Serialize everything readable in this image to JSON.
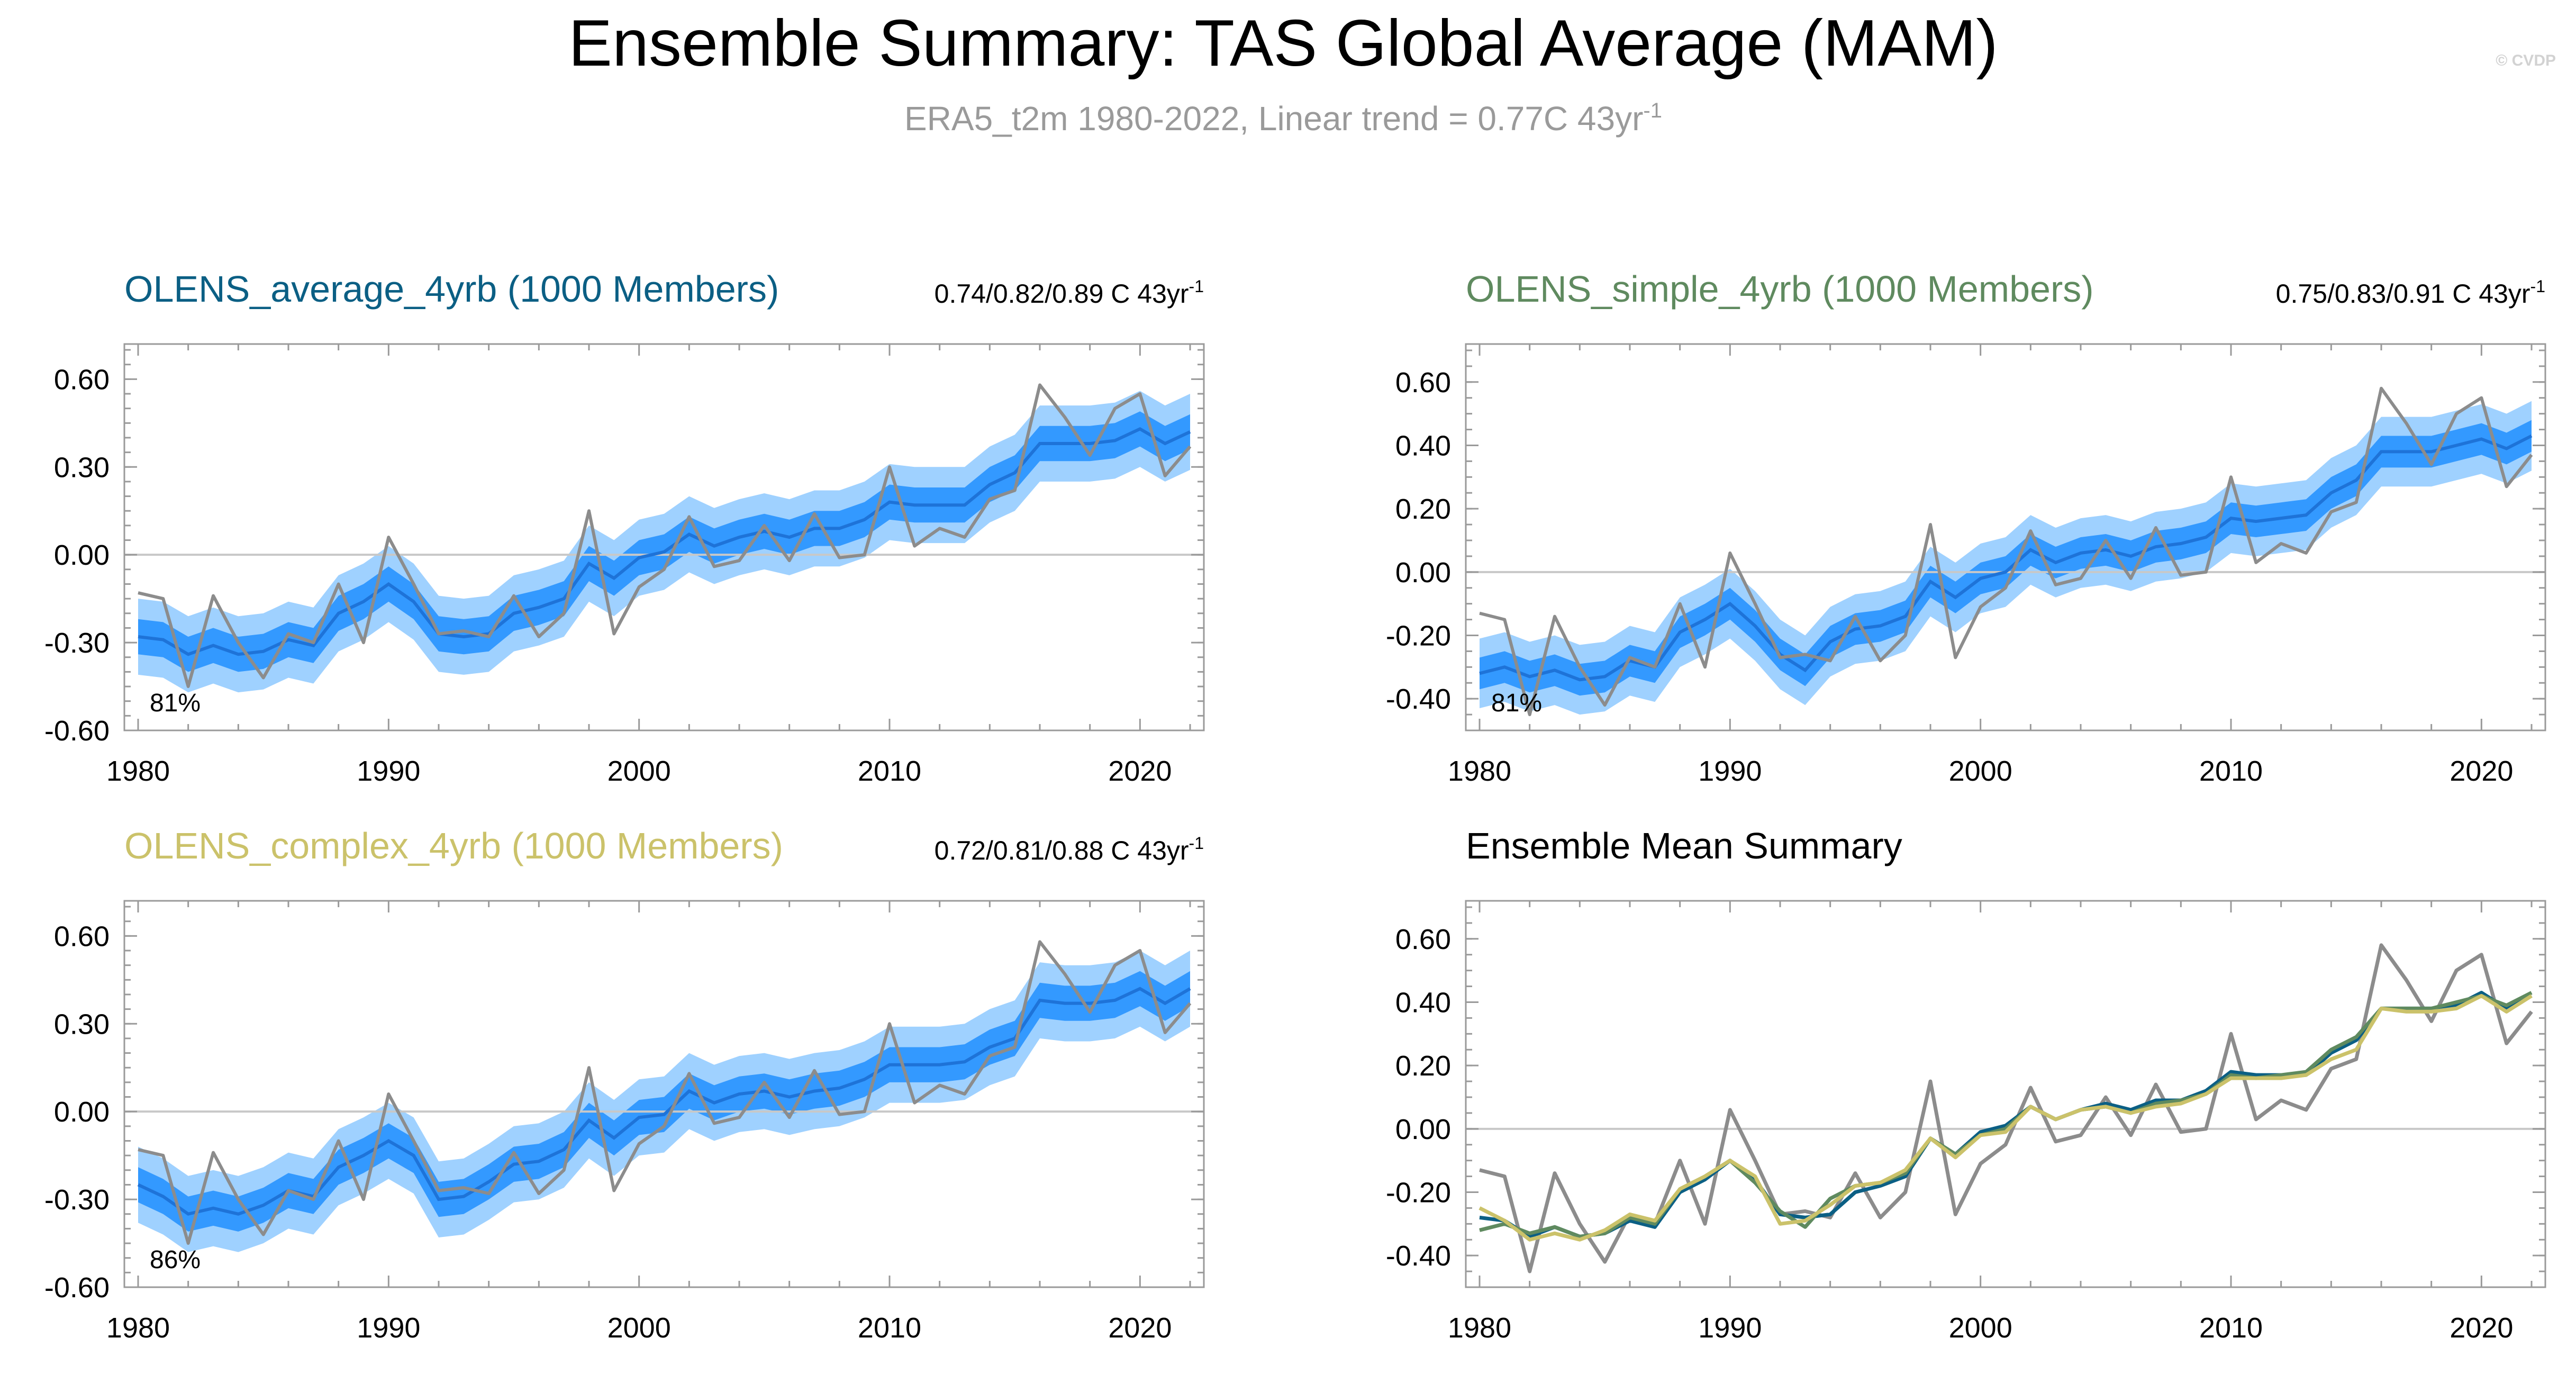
{
  "figure": {
    "title": "Ensemble Summary: TAS Global Average (MAM)",
    "subtitle_main": "ERA5_t2m 1980-2022, Linear trend = 0.77C 43yr",
    "subtitle_sup": "-1",
    "copyright": "© CVDP",
    "colors": {
      "band_outer": "#9fd1ff",
      "band_inner": "#3399ff",
      "ensemble_mean_line": "#1e73d8",
      "observations": "#8c8c8c",
      "zero_line": "#c8c8c8",
      "average_4yrb": "#0b5f84",
      "simple_4yrb": "#5f8a5f",
      "complex_4yrb": "#cbc26a"
    }
  },
  "panels": [
    {
      "title": "OLENS_average_4yrb (1000 Members)",
      "title_color": "#0b5f84",
      "trend_main": "0.74/0.82/0.89 C 43yr",
      "trend_sup": "-1",
      "percent": "81%"
    },
    {
      "title": "OLENS_simple_4yrb (1000 Members)",
      "title_color": "#5f8a5f",
      "trend_main": "0.75/0.83/0.91 C 43yr",
      "trend_sup": "-1",
      "percent": "81%"
    },
    {
      "title": "OLENS_complex_4yrb (1000 Members)",
      "title_color": "#cbc26a",
      "trend_main": "0.72/0.81/0.88 C 43yr",
      "trend_sup": "-1",
      "percent": "86%"
    },
    {
      "title": "Ensemble Mean Summary",
      "title_color": "#000000"
    }
  ],
  "chart_data": [
    {
      "type": "area",
      "panel": "OLENS_average_4yrb (1000 Members)",
      "xlim": [
        1980,
        2022
      ],
      "ylim": [
        -0.6,
        0.72
      ],
      "yticks": [
        -0.6,
        -0.3,
        0.0,
        0.3,
        0.6
      ],
      "ytick_labels": [
        "-0.60",
        "-0.30",
        "0.00",
        "0.30",
        "0.60"
      ],
      "xticks": [
        1980,
        1990,
        2000,
        2010,
        2020
      ],
      "grid": "zero line only",
      "series": [
        {
          "name": "ERA5_t2m",
          "values": [
            -0.13,
            -0.15,
            -0.45,
            -0.14,
            -0.3,
            -0.42,
            -0.27,
            -0.3,
            -0.1,
            -0.3,
            0.06,
            -0.1,
            -0.27,
            -0.26,
            -0.28,
            -0.14,
            -0.28,
            -0.2,
            0.15,
            -0.27,
            -0.11,
            -0.05,
            0.13,
            -0.04,
            -0.02,
            0.1,
            -0.02,
            0.14,
            -0.01,
            0.0,
            0.3,
            0.03,
            0.09,
            0.06,
            0.19,
            0.22,
            0.58,
            0.47,
            0.34,
            0.5,
            0.55,
            0.27,
            0.37
          ]
        }
      ],
      "ensemble_mean": [
        -0.28,
        -0.29,
        -0.34,
        -0.31,
        -0.34,
        -0.33,
        -0.29,
        -0.31,
        -0.2,
        -0.16,
        -0.1,
        -0.16,
        -0.27,
        -0.28,
        -0.27,
        -0.2,
        -0.18,
        -0.15,
        -0.03,
        -0.08,
        -0.01,
        0.01,
        0.07,
        0.03,
        0.06,
        0.08,
        0.06,
        0.09,
        0.09,
        0.12,
        0.18,
        0.17,
        0.17,
        0.17,
        0.24,
        0.28,
        0.38,
        0.38,
        0.38,
        0.39,
        0.43,
        0.38,
        0.42
      ],
      "inner_band_halfwidth": 0.06,
      "outer_band_halfwidth": 0.13
    },
    {
      "type": "area",
      "panel": "OLENS_simple_4yrb (1000 Members)",
      "xlim": [
        1980,
        2022
      ],
      "ylim": [
        -0.5,
        0.72
      ],
      "yticks": [
        -0.4,
        -0.2,
        0.0,
        0.2,
        0.4,
        0.6
      ],
      "ytick_labels": [
        "-0.40",
        "-0.20",
        "0.00",
        "0.20",
        "0.40",
        "0.60"
      ],
      "xticks": [
        1980,
        1990,
        2000,
        2010,
        2020
      ],
      "grid": "zero line only",
      "series": [
        {
          "name": "ERA5_t2m",
          "values": [
            -0.13,
            -0.15,
            -0.45,
            -0.14,
            -0.3,
            -0.42,
            -0.27,
            -0.3,
            -0.1,
            -0.3,
            0.06,
            -0.1,
            -0.27,
            -0.26,
            -0.28,
            -0.14,
            -0.28,
            -0.2,
            0.15,
            -0.27,
            -0.11,
            -0.05,
            0.13,
            -0.04,
            -0.02,
            0.1,
            -0.02,
            0.14,
            -0.01,
            0.0,
            0.3,
            0.03,
            0.09,
            0.06,
            0.19,
            0.22,
            0.58,
            0.47,
            0.34,
            0.5,
            0.55,
            0.27,
            0.37
          ]
        }
      ],
      "ensemble_mean": [
        -0.32,
        -0.3,
        -0.33,
        -0.31,
        -0.34,
        -0.33,
        -0.28,
        -0.3,
        -0.19,
        -0.15,
        -0.1,
        -0.17,
        -0.26,
        -0.31,
        -0.22,
        -0.18,
        -0.17,
        -0.14,
        -0.03,
        -0.08,
        -0.02,
        0.0,
        0.07,
        0.03,
        0.06,
        0.07,
        0.05,
        0.08,
        0.09,
        0.11,
        0.17,
        0.16,
        0.17,
        0.18,
        0.25,
        0.29,
        0.38,
        0.38,
        0.38,
        0.4,
        0.42,
        0.39,
        0.43
      ],
      "inner_band_halfwidth": 0.05,
      "outer_band_halfwidth": 0.11
    },
    {
      "type": "area",
      "panel": "OLENS_complex_4yrb (1000 Members)",
      "xlim": [
        1980,
        2022
      ],
      "ylim": [
        -0.6,
        0.72
      ],
      "yticks": [
        -0.6,
        -0.3,
        0.0,
        0.3,
        0.6
      ],
      "ytick_labels": [
        "-0.60",
        "-0.30",
        "0.00",
        "0.30",
        "0.60"
      ],
      "xticks": [
        1980,
        1990,
        2000,
        2010,
        2020
      ],
      "grid": "zero line only",
      "series": [
        {
          "name": "ERA5_t2m",
          "values": [
            -0.13,
            -0.15,
            -0.45,
            -0.14,
            -0.3,
            -0.42,
            -0.27,
            -0.3,
            -0.1,
            -0.3,
            0.06,
            -0.1,
            -0.27,
            -0.26,
            -0.28,
            -0.14,
            -0.28,
            -0.2,
            0.15,
            -0.27,
            -0.11,
            -0.05,
            0.13,
            -0.04,
            -0.02,
            0.1,
            -0.02,
            0.14,
            -0.01,
            0.0,
            0.3,
            0.03,
            0.09,
            0.06,
            0.19,
            0.22,
            0.58,
            0.47,
            0.34,
            0.5,
            0.55,
            0.27,
            0.37
          ]
        }
      ],
      "ensemble_mean": [
        -0.25,
        -0.29,
        -0.35,
        -0.33,
        -0.35,
        -0.32,
        -0.27,
        -0.29,
        -0.19,
        -0.15,
        -0.1,
        -0.15,
        -0.3,
        -0.29,
        -0.24,
        -0.18,
        -0.17,
        -0.13,
        -0.03,
        -0.09,
        -0.02,
        -0.01,
        0.07,
        0.03,
        0.06,
        0.07,
        0.05,
        0.07,
        0.08,
        0.11,
        0.16,
        0.16,
        0.16,
        0.17,
        0.22,
        0.25,
        0.38,
        0.37,
        0.37,
        0.38,
        0.42,
        0.37,
        0.42
      ],
      "inner_band_halfwidth": 0.06,
      "outer_band_halfwidth": 0.13
    },
    {
      "type": "line",
      "panel": "Ensemble Mean Summary",
      "xlim": [
        1980,
        2022
      ],
      "ylim": [
        -0.5,
        0.72
      ],
      "yticks": [
        -0.4,
        -0.2,
        0.0,
        0.2,
        0.4,
        0.6
      ],
      "ytick_labels": [
        "-0.40",
        "-0.20",
        "0.00",
        "0.20",
        "0.40",
        "0.60"
      ],
      "xticks": [
        1980,
        1990,
        2000,
        2010,
        2020
      ],
      "grid": "zero line only",
      "series": [
        {
          "name": "ERA5_t2m",
          "values": [
            -0.13,
            -0.15,
            -0.45,
            -0.14,
            -0.3,
            -0.42,
            -0.27,
            -0.3,
            -0.1,
            -0.3,
            0.06,
            -0.1,
            -0.27,
            -0.26,
            -0.28,
            -0.14,
            -0.28,
            -0.2,
            0.15,
            -0.27,
            -0.11,
            -0.05,
            0.13,
            -0.04,
            -0.02,
            0.1,
            -0.02,
            0.14,
            -0.01,
            0.0,
            0.3,
            0.03,
            0.09,
            0.06,
            0.19,
            0.22,
            0.58,
            0.47,
            0.34,
            0.5,
            0.55,
            0.27,
            0.37
          ]
        },
        {
          "name": "OLENS_average_4yrb",
          "values": [
            -0.28,
            -0.29,
            -0.34,
            -0.31,
            -0.34,
            -0.33,
            -0.29,
            -0.31,
            -0.2,
            -0.16,
            -0.1,
            -0.16,
            -0.27,
            -0.28,
            -0.27,
            -0.2,
            -0.18,
            -0.15,
            -0.03,
            -0.08,
            -0.01,
            0.01,
            0.07,
            0.03,
            0.06,
            0.08,
            0.06,
            0.09,
            0.09,
            0.12,
            0.18,
            0.17,
            0.17,
            0.17,
            0.24,
            0.28,
            0.38,
            0.38,
            0.38,
            0.39,
            0.43,
            0.38,
            0.42
          ]
        },
        {
          "name": "OLENS_simple_4yrb",
          "values": [
            -0.32,
            -0.3,
            -0.33,
            -0.31,
            -0.34,
            -0.33,
            -0.28,
            -0.3,
            -0.19,
            -0.15,
            -0.1,
            -0.17,
            -0.26,
            -0.31,
            -0.22,
            -0.18,
            -0.17,
            -0.14,
            -0.03,
            -0.08,
            -0.02,
            0.0,
            0.07,
            0.03,
            0.06,
            0.07,
            0.05,
            0.08,
            0.09,
            0.11,
            0.17,
            0.16,
            0.17,
            0.18,
            0.25,
            0.29,
            0.38,
            0.38,
            0.38,
            0.4,
            0.42,
            0.39,
            0.43
          ]
        },
        {
          "name": "OLENS_complex_4yrb",
          "values": [
            -0.25,
            -0.29,
            -0.35,
            -0.33,
            -0.35,
            -0.32,
            -0.27,
            -0.29,
            -0.19,
            -0.15,
            -0.1,
            -0.15,
            -0.3,
            -0.29,
            -0.24,
            -0.18,
            -0.17,
            -0.13,
            -0.03,
            -0.09,
            -0.02,
            -0.01,
            0.07,
            0.03,
            0.06,
            0.07,
            0.05,
            0.07,
            0.08,
            0.11,
            0.16,
            0.16,
            0.16,
            0.17,
            0.22,
            0.25,
            0.38,
            0.37,
            0.37,
            0.38,
            0.42,
            0.37,
            0.42
          ]
        }
      ]
    }
  ]
}
